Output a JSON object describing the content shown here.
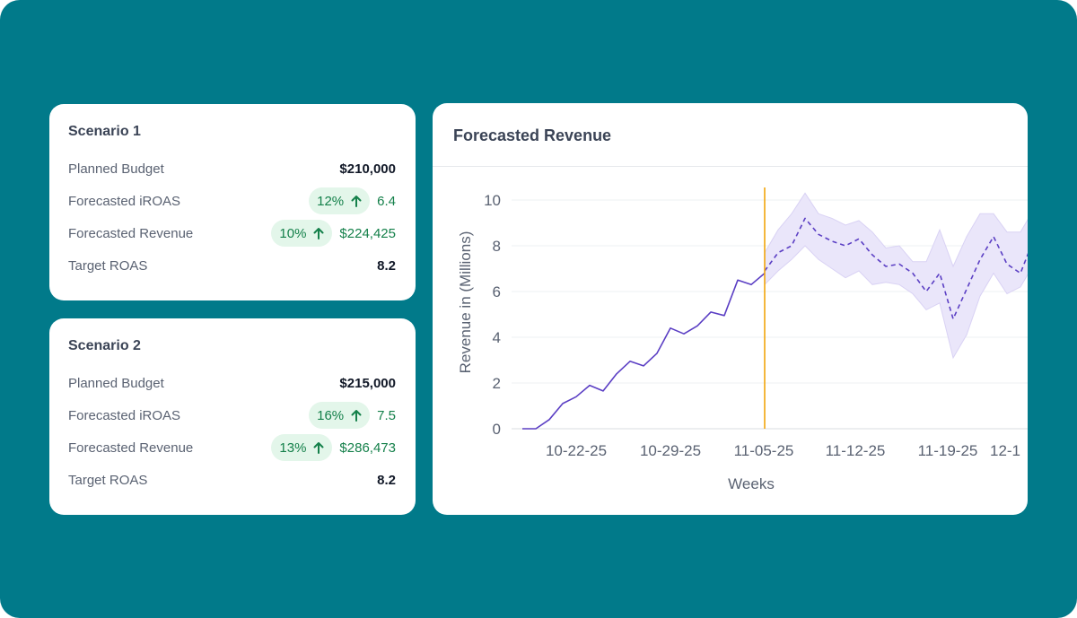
{
  "colors": {
    "background": "#017a8a",
    "positive": "#14804a",
    "positive_bg": "#e3f6ea",
    "actual_line": "#5b3fc4",
    "forecast_line": "#5b3fc4",
    "band": "#eae6fa",
    "today_marker": "#f2a50c"
  },
  "scenarios": [
    {
      "title": "Scenario 1",
      "rows": {
        "budget": {
          "label": "Planned Budget",
          "value": "$210,000"
        },
        "iroas": {
          "label": "Forecasted iROAS",
          "pct": "12%",
          "value": "6.4"
        },
        "revenue": {
          "label": "Forecasted Revenue",
          "pct": "10%",
          "value": "$224,425"
        },
        "target": {
          "label": "Target ROAS",
          "value": "8.2"
        }
      }
    },
    {
      "title": "Scenario 2",
      "rows": {
        "budget": {
          "label": "Planned Budget",
          "value": "$215,000"
        },
        "iroas": {
          "label": "Forecasted iROAS",
          "pct": "16%",
          "value": "7.5"
        },
        "revenue": {
          "label": "Forecasted Revenue",
          "pct": "13%",
          "value": "$286,473"
        },
        "target": {
          "label": "Target ROAS",
          "value": "8.2"
        }
      }
    }
  ],
  "icons": {
    "trend_up": "arrow-up-icon"
  },
  "chart_data": {
    "type": "line",
    "title": "Forecasted Revenue",
    "xlabel": "Weeks",
    "ylabel": "Revenue in (Millions)",
    "ylim": [
      0,
      10
    ],
    "yticks": [
      0,
      2,
      4,
      6,
      8,
      10
    ],
    "xtick_labels": [
      "10-22-25",
      "10-29-25",
      "11-05-25",
      "11-12-25",
      "11-19-25",
      "12-1"
    ],
    "grid": true,
    "today_marker": "11-05-25",
    "series": [
      {
        "kind": "actual",
        "x": [
          "10-18-25",
          "10-19-25",
          "10-20-25",
          "10-21-25",
          "10-22-25",
          "10-23-25",
          "10-24-25",
          "10-25-25",
          "10-26-25",
          "10-27-25",
          "10-28-25",
          "10-29-25",
          "10-30-25",
          "10-31-25",
          "11-01-25",
          "11-02-25",
          "11-03-25",
          "11-04-25",
          "11-05-25"
        ],
        "y": [
          0,
          0,
          0.4,
          1.1,
          1.4,
          1.9,
          1.65,
          2.4,
          2.95,
          2.75,
          3.3,
          4.4,
          4.15,
          4.5,
          5.1,
          4.95,
          6.5,
          6.3,
          6.8
        ]
      },
      {
        "kind": "forecast",
        "x": [
          "11-05-25",
          "11-06-25",
          "11-07-25",
          "11-08-25",
          "11-09-25",
          "11-10-25",
          "11-11-25",
          "11-12-25",
          "11-13-25",
          "11-14-25",
          "11-15-25",
          "11-16-25",
          "11-17-25",
          "11-18-25",
          "11-19-25",
          "11-20-25",
          "11-21-25",
          "11-22-25",
          "11-23-25",
          "11-24-25",
          "11-25-25"
        ],
        "y": [
          6.9,
          7.7,
          8.0,
          9.2,
          8.5,
          8.2,
          8.0,
          8.3,
          7.6,
          7.1,
          7.2,
          6.8,
          6.0,
          6.8,
          4.8,
          6.1,
          7.4,
          8.4,
          7.2,
          6.8,
          8.3
        ],
        "upper": [
          7.7,
          8.7,
          9.4,
          10.3,
          9.4,
          9.2,
          8.9,
          9.1,
          8.6,
          7.9,
          8.0,
          7.3,
          7.3,
          8.7,
          7.1,
          8.4,
          9.4,
          9.4,
          8.6,
          8.6,
          9.6
        ],
        "lower": [
          6.3,
          6.9,
          7.4,
          8.0,
          7.4,
          7.0,
          6.6,
          6.9,
          6.3,
          6.4,
          6.3,
          5.9,
          5.2,
          5.5,
          3.1,
          4.1,
          5.8,
          6.8,
          5.9,
          6.2,
          7.2
        ]
      }
    ]
  }
}
